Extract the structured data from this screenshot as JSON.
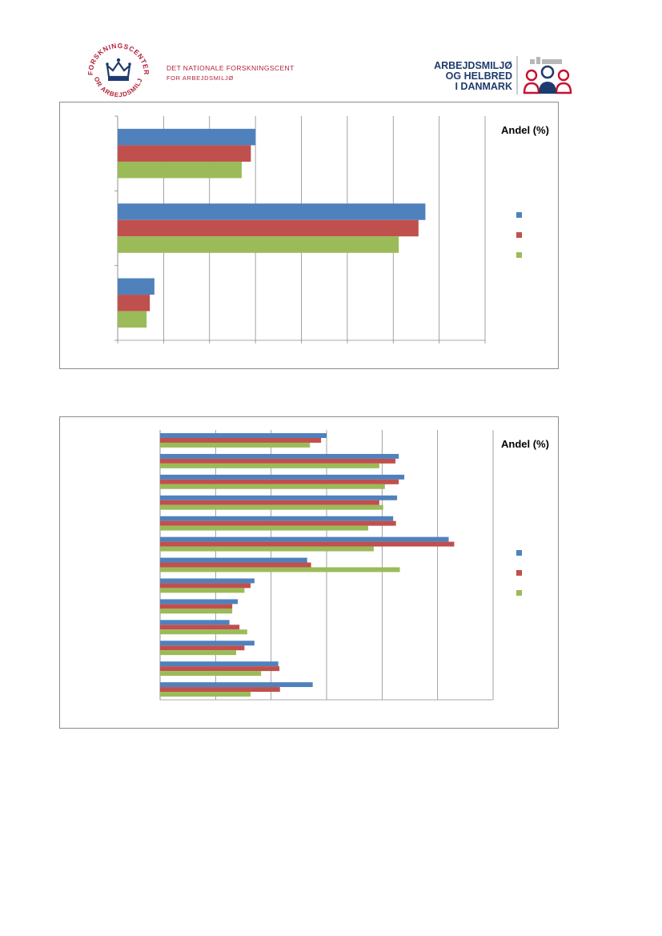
{
  "header": {
    "left_logo": {
      "seal_text_top": "FORSKNINGSCENTER",
      "seal_text_bottom": "FOR ARBEJDSMILJØ",
      "line1": "DET NATIONALE FORSKNINGSCENTER",
      "line2": "FOR ARBEJDSMILJØ",
      "crown_color": "#1f3b6e",
      "text_color": "#b3213a"
    },
    "right_logo": {
      "line1": "ARBEJDSMILJØ",
      "line2": "OG HELBRED",
      "line3": "I DANMARK",
      "text_color": "#1f3b6e",
      "icon_color": "#c8102e"
    }
  },
  "colors": {
    "series": [
      "#4f81bd",
      "#c0504d",
      "#9bbb59"
    ],
    "grid": "#8c8c8c"
  },
  "chart_data": [
    {
      "type": "bar",
      "orientation": "horizontal",
      "legend_title": "Andel (%)",
      "legend_position": "right",
      "grid": true,
      "categories": [
        "",
        "",
        ""
      ],
      "series": [
        {
          "values": [
            30,
            67,
            8
          ]
        },
        {
          "values": [
            29,
            65.5,
            7
          ]
        },
        {
          "values": [
            27,
            61.2,
            6.3
          ]
        }
      ],
      "xlim": [
        0,
        80
      ],
      "x_gridline_step": 10
    },
    {
      "type": "bar",
      "orientation": "horizontal",
      "legend_title": "Andel (%)",
      "legend_position": "right",
      "grid": true,
      "categories": [
        "",
        "",
        "",
        "",
        "",
        "",
        "",
        "",
        "",
        "",
        "",
        "",
        ""
      ],
      "series": [
        {
          "values": [
            30,
            43,
            44,
            42.7,
            42,
            52,
            26.5,
            17,
            14,
            12.5,
            17,
            21.3,
            27.5
          ]
        },
        {
          "values": [
            29,
            42.4,
            43,
            39.5,
            42.5,
            53,
            27.2,
            16.3,
            13,
            14.3,
            15.2,
            21.5,
            21.6
          ]
        },
        {
          "values": [
            27,
            39.5,
            40.5,
            40.2,
            37.5,
            38.5,
            43.2,
            15.2,
            13,
            15.7,
            13.7,
            18.2,
            16.3
          ]
        }
      ],
      "xlim": [
        0,
        60
      ],
      "x_gridline_step": 10
    }
  ]
}
